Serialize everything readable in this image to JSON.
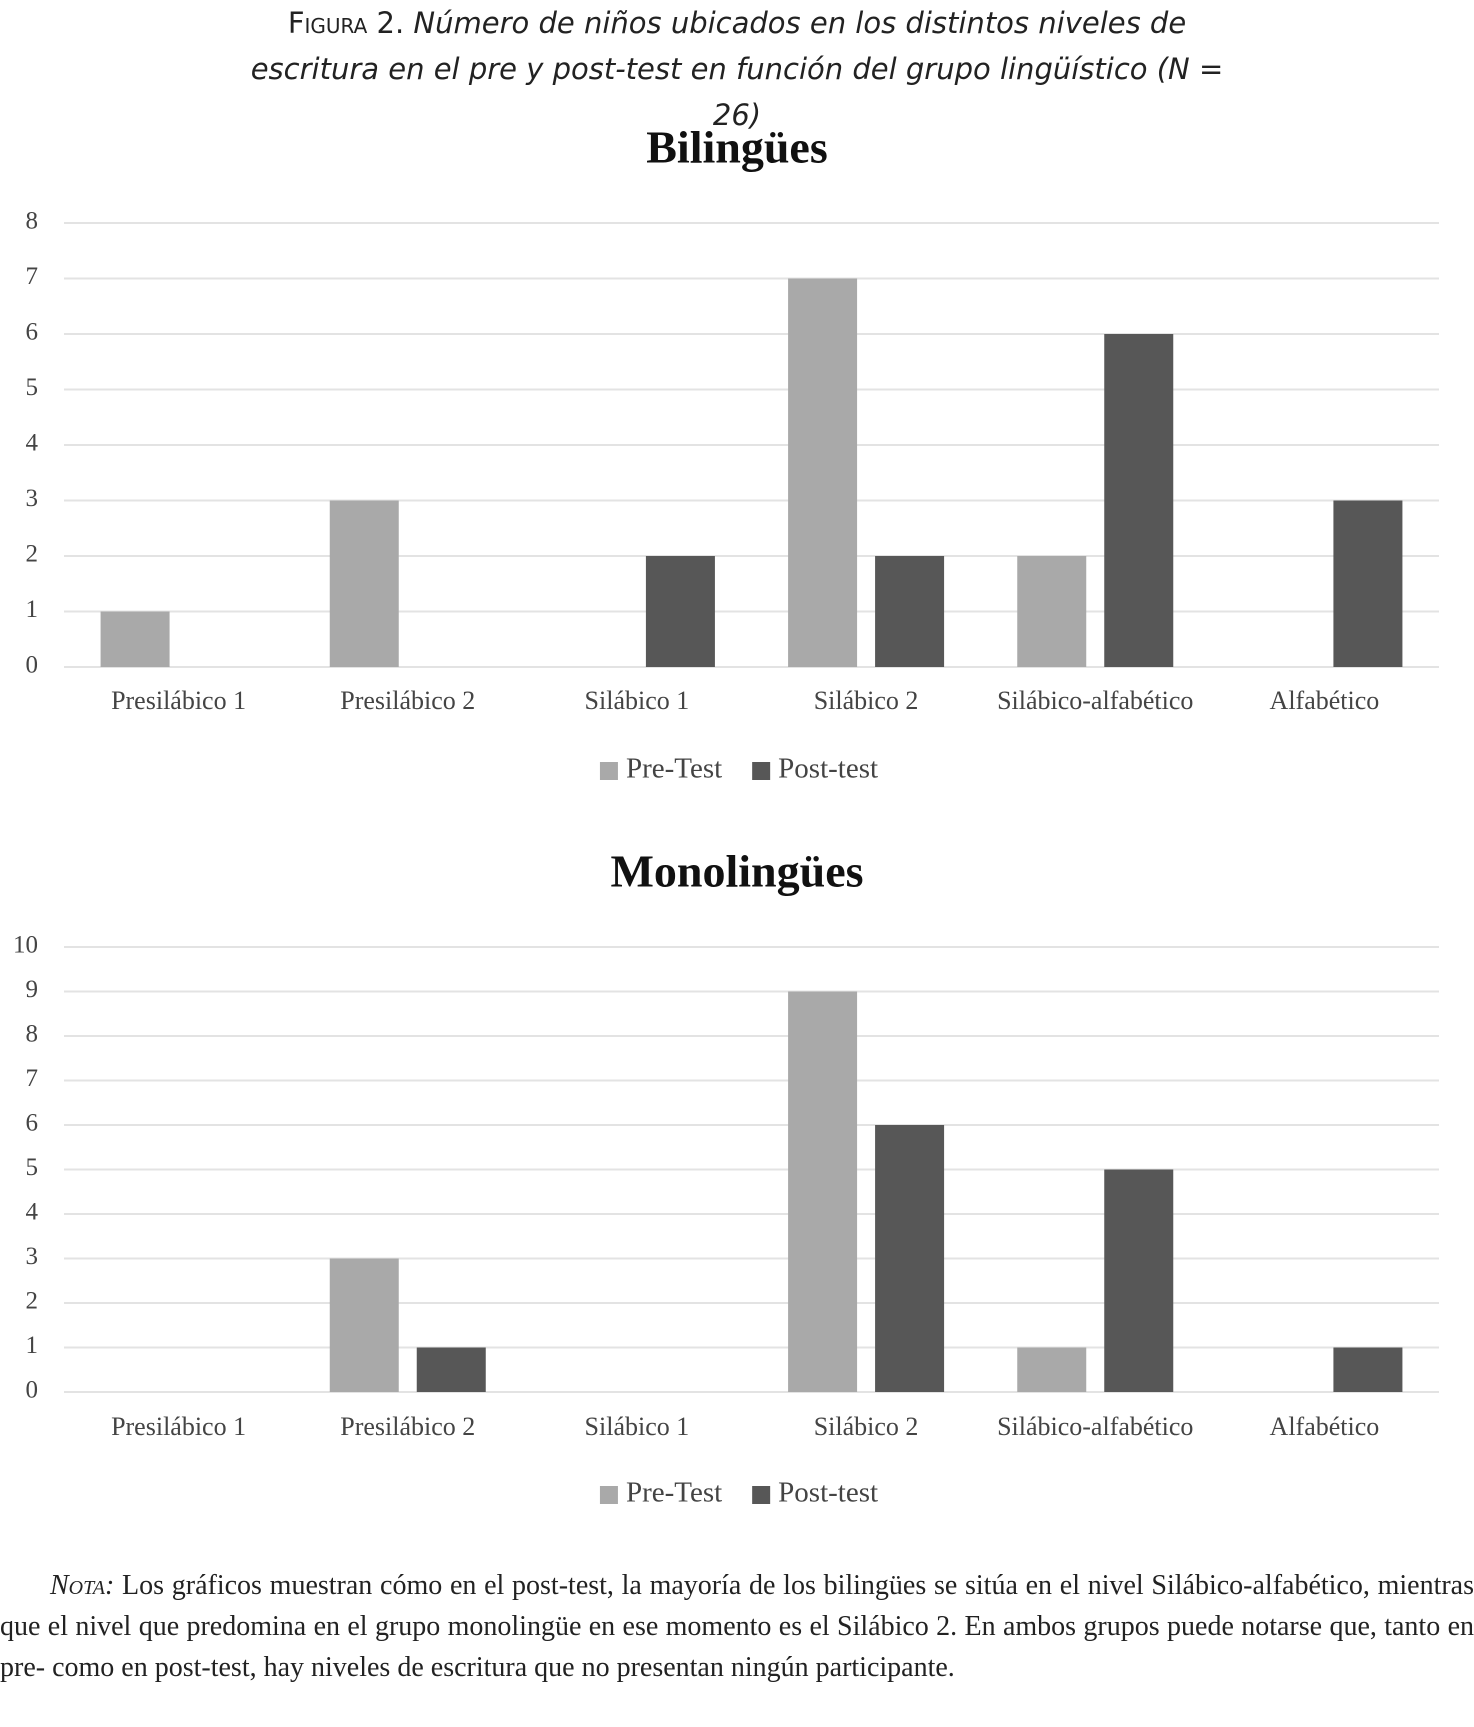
{
  "caption": {
    "label": "Figura 2.",
    "text": "Número de niños ubicados en los distintos niveles de escritura en el pre y post-test en función del grupo lingüístico (N = 26)"
  },
  "chart_data": [
    {
      "type": "bar",
      "title": "Bilingües",
      "categories": [
        "Presilábico 1",
        "Presilábico 2",
        "Silábico 1",
        "Silábico 2",
        "Silábico-alfabético",
        "Alfabético"
      ],
      "series": [
        {
          "name": "Pre-Test",
          "color": "#a9a9a9",
          "values": [
            1,
            3,
            0,
            7,
            2,
            0
          ]
        },
        {
          "name": "Post-test",
          "color": "#575757",
          "values": [
            0,
            0,
            2,
            2,
            6,
            3
          ]
        }
      ],
      "ylim": [
        0,
        8
      ],
      "yticks": [
        0,
        1,
        2,
        3,
        4,
        5,
        6,
        7,
        8
      ],
      "grid": true,
      "legend": "bottom"
    },
    {
      "type": "bar",
      "title": "Monolingües",
      "categories": [
        "Presilábico 1",
        "Presilábico 2",
        "Silábico 1",
        "Silábico 2",
        "Silábico-alfabético",
        "Alfabético"
      ],
      "series": [
        {
          "name": "Pre-Test",
          "color": "#a9a9a9",
          "values": [
            0,
            3,
            0,
            9,
            1,
            0
          ]
        },
        {
          "name": "Post-test",
          "color": "#575757",
          "values": [
            0,
            1,
            0,
            6,
            5,
            1
          ]
        }
      ],
      "ylim": [
        0,
        10
      ],
      "yticks": [
        0,
        1,
        2,
        3,
        4,
        5,
        6,
        7,
        8,
        9,
        10
      ],
      "grid": true,
      "legend": "bottom"
    }
  ],
  "note": {
    "label": "Nota:",
    "text": "Los gráficos muestran cómo en el post-test, la mayoría de los bilingües se sitúa en el nivel Silábico-alfabético, mientras que el nivel que predomina en el grupo monolingüe en ese momento es el Silábico 2. En ambos grupos puede notarse que, tanto en pre- como en post-test, hay niveles de escritura que no presentan ningún participante."
  }
}
